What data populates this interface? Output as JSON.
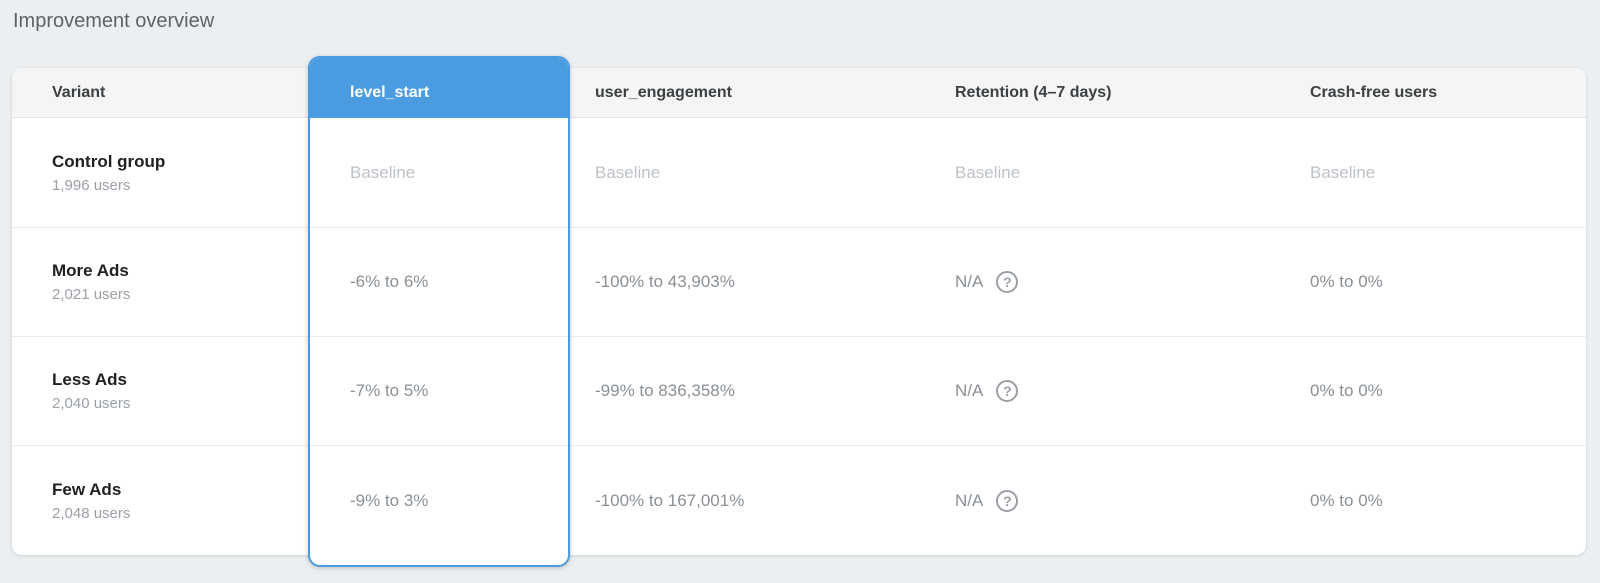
{
  "page": {
    "title": "Improvement overview"
  },
  "colors": {
    "accent_blue": "#4A9BE0",
    "page_background": "#ECEFF1",
    "header_background": "#F5F5F5",
    "baseline_text": "#BDC2C7",
    "value_text": "#8A9095"
  },
  "icons": {
    "help": {
      "name": "help-circle-icon",
      "glyph": "?"
    }
  },
  "table": {
    "columns": [
      "Variant",
      "level_start",
      "user_engagement",
      "Retention (4–7 days)",
      "Crash-free users"
    ],
    "highlighted_column": "level_start",
    "rows": [
      {
        "variant": "Control group",
        "users": "1,996 users",
        "level_start": "Baseline",
        "user_engagement": "Baseline",
        "retention": "Baseline",
        "crash_free": "Baseline"
      },
      {
        "variant": "More Ads",
        "users": "2,021 users",
        "level_start": "-6% to 6%",
        "user_engagement": "-100% to 43,903%",
        "retention": "N/A",
        "crash_free": "0% to 0%"
      },
      {
        "variant": "Less Ads",
        "users": "2,040 users",
        "level_start": "-7% to 5%",
        "user_engagement": "-99% to 836,358%",
        "retention": "N/A",
        "crash_free": "0% to 0%"
      },
      {
        "variant": "Few Ads",
        "users": "2,048 users",
        "level_start": "-9% to 3%",
        "user_engagement": "-100% to 167,001%",
        "retention": "N/A",
        "crash_free": "0% to 0%"
      }
    ]
  }
}
